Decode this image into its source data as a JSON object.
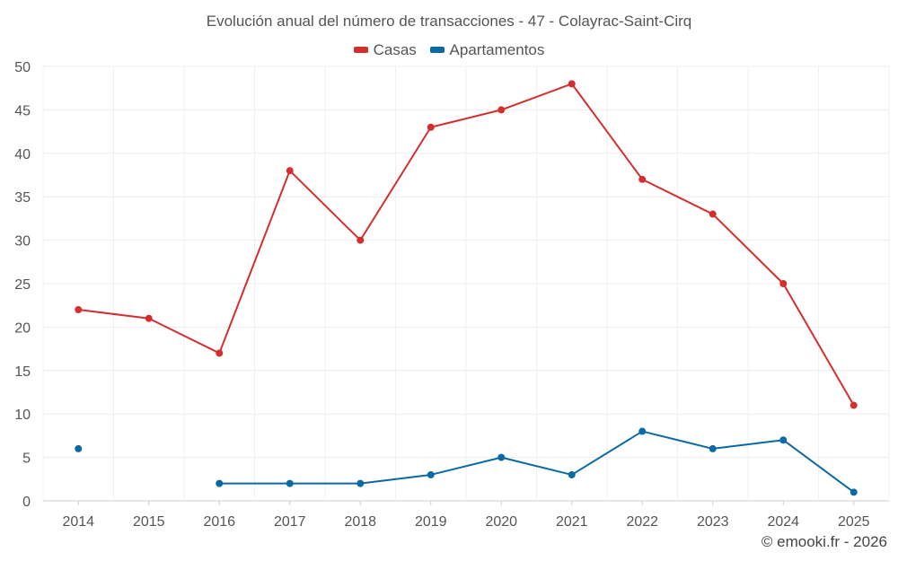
{
  "chart_data": {
    "type": "line",
    "title": "Evolución anual del número de transacciones - 47 - Colayrac-Saint-Cirq",
    "categories": [
      "2014",
      "2015",
      "2016",
      "2017",
      "2018",
      "2019",
      "2020",
      "2021",
      "2022",
      "2023",
      "2024",
      "2025"
    ],
    "ylim": [
      0,
      50
    ],
    "yticks": [
      "0",
      "5",
      "10",
      "15",
      "20",
      "25",
      "30",
      "35",
      "40",
      "45",
      "50"
    ],
    "series": [
      {
        "name": "Casas",
        "color": "#d32f2f",
        "values": [
          22,
          21,
          17,
          38,
          30,
          43,
          45,
          48,
          37,
          33,
          25,
          11
        ]
      },
      {
        "name": "Apartamentos",
        "color": "#0a6aa1",
        "values": [
          6,
          null,
          2,
          2,
          2,
          3,
          5,
          3,
          8,
          6,
          7,
          1
        ]
      }
    ],
    "grid": true,
    "legend": "top-center"
  },
  "credit": "© emooki.fr - 2026"
}
